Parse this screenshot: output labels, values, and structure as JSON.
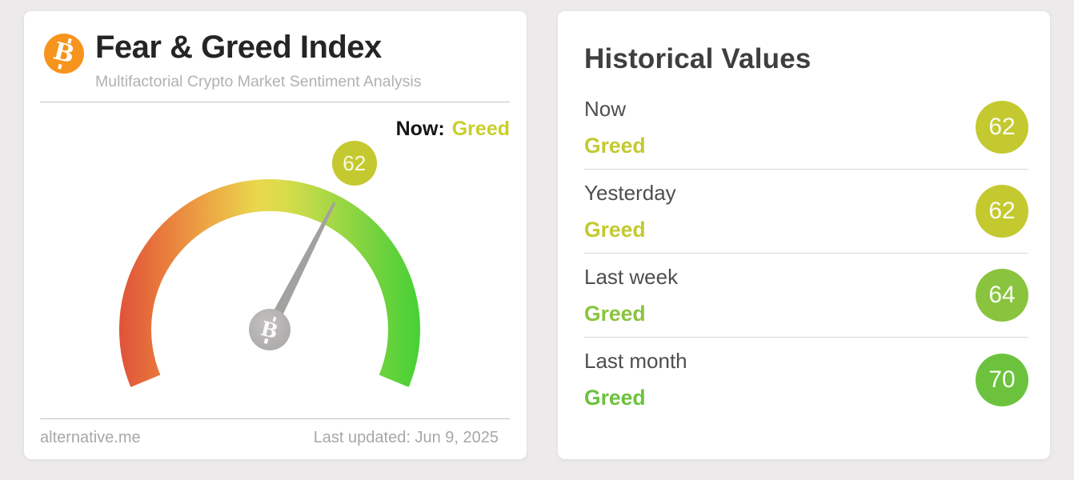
{
  "page": {
    "background_color": "#eceaeb"
  },
  "fear_greed_card": {
    "title": "Fear & Greed Index",
    "subtitle": "Multifactorial Crypto Market Sentiment Analysis",
    "bitcoin_brand_color": "#f7941d",
    "now_prefix": "Now:",
    "now_classification": "Greed",
    "now_classification_color": "#c9ce2b",
    "source": "alternative.me",
    "last_updated": "Last updated: Jun 9, 2025",
    "gauge": {
      "value": 62,
      "min": 0,
      "max": 100,
      "badge_color": "#c4c930",
      "arc_colors": [
        "#e0523a",
        "#e8763c",
        "#eda845",
        "#e9d84d",
        "#d9dc4b",
        "#a8d845",
        "#74d23e",
        "#47d136"
      ]
    }
  },
  "historical_card": {
    "title": "Historical Values",
    "rows": [
      {
        "label": "Now",
        "classification": "Greed",
        "value": 62,
        "color": "#c4c930"
      },
      {
        "label": "Yesterday",
        "classification": "Greed",
        "value": 62,
        "color": "#c4c930"
      },
      {
        "label": "Last week",
        "classification": "Greed",
        "value": 64,
        "color": "#8ac43e"
      },
      {
        "label": "Last month",
        "classification": "Greed",
        "value": 70,
        "color": "#6cc23c"
      }
    ]
  },
  "chart_data": {
    "type": "gauge",
    "title": "Fear & Greed Index",
    "subtitle": "Multifactorial Crypto Market Sentiment Analysis",
    "value": 62,
    "classification": "Greed",
    "range": [
      0,
      100
    ],
    "scale": "red (fear) at left end to green (greed) at right end across a 225-degree arc",
    "historical": [
      {
        "label": "Now",
        "value": 62,
        "classification": "Greed"
      },
      {
        "label": "Yesterday",
        "value": 62,
        "classification": "Greed"
      },
      {
        "label": "Last week",
        "value": 64,
        "classification": "Greed"
      },
      {
        "label": "Last month",
        "value": 70,
        "classification": "Greed"
      }
    ],
    "source": "alternative.me",
    "last_updated": "Jun 9, 2025"
  }
}
